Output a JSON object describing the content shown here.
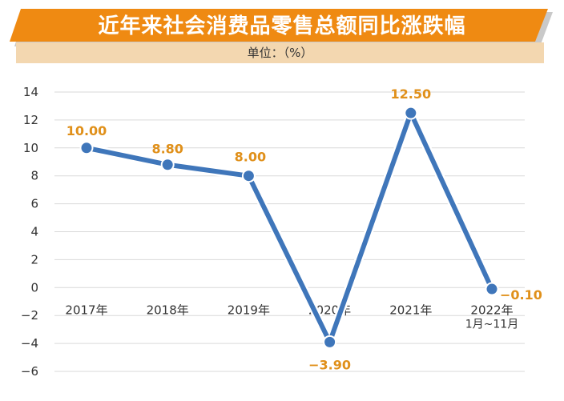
{
  "header": {
    "title": "近年来社会消费品零售总额同比涨跌幅",
    "unit": "单位：（%）"
  },
  "colors": {
    "banner": "#ef8a12",
    "unit_band": "#f3d7b0",
    "line": "#3f76ba",
    "value_label": "#e0901a",
    "grid": "#d9d9d9"
  },
  "chart_data": {
    "type": "line",
    "title": "近年来社会消费品零售总额同比涨跌幅",
    "ylabel": "单位：（%）",
    "xlabel": "",
    "categories": [
      [
        "2017年"
      ],
      [
        "2018年"
      ],
      [
        "2019年"
      ],
      [
        "2020年"
      ],
      [
        "2021年"
      ],
      [
        "2022年",
        "1月~11月"
      ]
    ],
    "series": [
      {
        "values": [
          10.0,
          8.8,
          8.0,
          -3.9,
          12.5,
          -0.1
        ],
        "labels": [
          "10.00",
          "8.80",
          "8.00",
          "−3.90",
          "12.50",
          "−0.10"
        ]
      }
    ],
    "y_ticks": [
      "14",
      "12",
      "10",
      "8",
      "6",
      "4",
      "2",
      "0",
      "−2",
      "−4",
      "−6"
    ],
    "ylim": [
      -6,
      14
    ],
    "grid": true,
    "legend": "none"
  }
}
